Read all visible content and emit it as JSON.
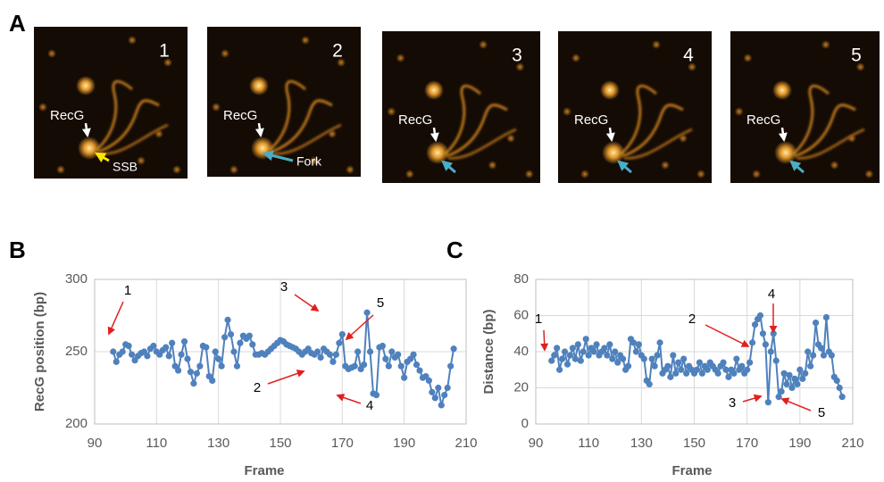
{
  "figure": {
    "panel_label": "A",
    "panels": [
      {
        "number": "1",
        "labels": [
          "RecG",
          "SSB"
        ]
      },
      {
        "number": "2",
        "labels": [
          "RecG",
          "Fork"
        ]
      },
      {
        "number": "3",
        "labels": [
          "RecG"
        ]
      },
      {
        "number": "4",
        "labels": [
          "RecG"
        ]
      },
      {
        "number": "5",
        "labels": [
          "RecG"
        ]
      }
    ]
  },
  "chart_data": [
    {
      "type": "line",
      "panel_label": "B",
      "x_label": "Frame",
      "y_label": "RecG position (bp)",
      "xlim": [
        90,
        210
      ],
      "xticks": [
        90,
        110,
        130,
        150,
        170,
        190,
        210
      ],
      "ylim": [
        200,
        300
      ],
      "yticks": [
        200,
        250,
        300
      ],
      "grid": true,
      "markers": true,
      "annotations": [
        "1",
        "3",
        "5",
        "2",
        "4"
      ],
      "x": [
        96,
        97,
        98,
        99,
        100,
        101,
        102,
        103,
        104,
        105,
        106,
        107,
        108,
        109,
        110,
        111,
        112,
        113,
        114,
        115,
        116,
        117,
        118,
        119,
        120,
        121,
        122,
        123,
        124,
        125,
        126,
        127,
        128,
        129,
        130,
        131,
        132,
        133,
        134,
        135,
        136,
        137,
        138,
        139,
        140,
        141,
        142,
        143,
        144,
        145,
        146,
        147,
        148,
        149,
        150,
        151,
        152,
        153,
        154,
        155,
        156,
        157,
        158,
        159,
        160,
        161,
        162,
        163,
        164,
        165,
        166,
        167,
        168,
        169,
        170,
        171,
        172,
        173,
        174,
        175,
        176,
        177,
        178,
        179,
        180,
        181,
        182,
        183,
        184,
        185,
        186,
        187,
        188,
        189,
        190,
        191,
        192,
        193,
        194,
        195,
        196,
        197,
        198,
        199,
        200,
        201,
        202,
        203,
        204,
        205,
        206
      ],
      "series": [
        {
          "color": "#4f81bd",
          "values": [
            250,
            243,
            248,
            250,
            255,
            254,
            248,
            244,
            247,
            249,
            250,
            247,
            252,
            254,
            250,
            248,
            251,
            253,
            247,
            256,
            240,
            237,
            248,
            257,
            245,
            236,
            228,
            235,
            240,
            254,
            253,
            233,
            230,
            250,
            245,
            240,
            260,
            272,
            262,
            250,
            240,
            256,
            261,
            259,
            261,
            255,
            248,
            248,
            249,
            248,
            250,
            252,
            254,
            256,
            258,
            257,
            255,
            254,
            253,
            252,
            250,
            248,
            250,
            252,
            249,
            248,
            250,
            246,
            252,
            250,
            248,
            243,
            248,
            256,
            262,
            240,
            238,
            239,
            240,
            250,
            238,
            241,
            277,
            250,
            221,
            220,
            253,
            254,
            245,
            240,
            250,
            246,
            248,
            240,
            232,
            243,
            245,
            248,
            241,
            237,
            232,
            233,
            230,
            222,
            218,
            225,
            213,
            220,
            225,
            240,
            252
          ]
        }
      ]
    },
    {
      "type": "line",
      "panel_label": "C",
      "x_label": "Frame",
      "y_label": "Distance (bp)",
      "xlim": [
        90,
        210
      ],
      "xticks": [
        90,
        110,
        130,
        150,
        170,
        190,
        210
      ],
      "ylim": [
        0,
        80
      ],
      "yticks": [
        0,
        20,
        40,
        60,
        80
      ],
      "grid": true,
      "markers": true,
      "annotations": [
        "1",
        "2",
        "4",
        "3",
        "5"
      ],
      "x": [
        96,
        97,
        98,
        99,
        100,
        101,
        102,
        103,
        104,
        105,
        106,
        107,
        108,
        109,
        110,
        111,
        112,
        113,
        114,
        115,
        116,
        117,
        118,
        119,
        120,
        121,
        122,
        123,
        124,
        125,
        126,
        127,
        128,
        129,
        130,
        131,
        132,
        133,
        134,
        135,
        136,
        137,
        138,
        139,
        140,
        141,
        142,
        143,
        144,
        145,
        146,
        147,
        148,
        149,
        150,
        151,
        152,
        153,
        154,
        155,
        156,
        157,
        158,
        159,
        160,
        161,
        162,
        163,
        164,
        165,
        166,
        167,
        168,
        169,
        170,
        171,
        172,
        173,
        174,
        175,
        176,
        177,
        178,
        179,
        180,
        181,
        182,
        183,
        184,
        185,
        186,
        187,
        188,
        189,
        190,
        191,
        192,
        193,
        194,
        195,
        196,
        197,
        198,
        199,
        200,
        201,
        202,
        203,
        204,
        205,
        206
      ],
      "series": [
        {
          "color": "#4f81bd",
          "values": [
            35,
            38,
            42,
            30,
            36,
            40,
            33,
            38,
            42,
            36,
            44,
            35,
            40,
            47,
            38,
            42,
            40,
            44,
            38,
            40,
            42,
            38,
            44,
            36,
            40,
            34,
            38,
            36,
            30,
            32,
            47,
            45,
            40,
            44,
            38,
            36,
            24,
            22,
            36,
            32,
            38,
            45,
            28,
            30,
            32,
            26,
            38,
            28,
            34,
            30,
            36,
            28,
            32,
            30,
            28,
            30,
            34,
            28,
            32,
            30,
            34,
            32,
            30,
            28,
            32,
            34,
            30,
            26,
            30,
            28,
            36,
            30,
            32,
            28,
            30,
            34,
            45,
            55,
            58,
            60,
            50,
            44,
            12,
            40,
            50,
            35,
            15,
            18,
            28,
            22,
            27,
            20,
            25,
            22,
            30,
            25,
            28,
            40,
            32,
            38,
            56,
            44,
            42,
            38,
            59,
            40,
            38,
            26,
            24,
            20,
            15
          ]
        }
      ]
    }
  ]
}
